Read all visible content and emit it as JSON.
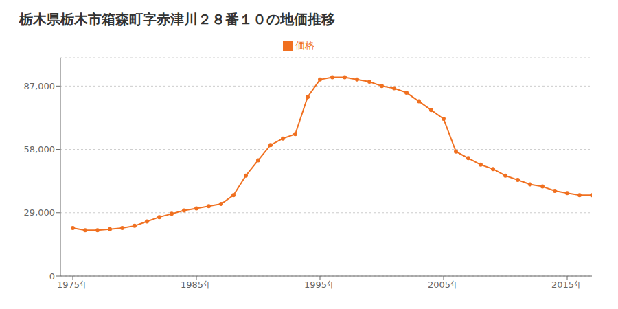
{
  "chart_data": {
    "type": "line",
    "title": "栃木県栃木市箱森町字赤津川２８番１０の地価推移",
    "x": [
      1975,
      1976,
      1977,
      1978,
      1979,
      1980,
      1981,
      1982,
      1983,
      1984,
      1985,
      1986,
      1987,
      1988,
      1989,
      1990,
      1991,
      1992,
      1993,
      1994,
      1995,
      1996,
      1997,
      1998,
      1999,
      2000,
      2001,
      2002,
      2003,
      2004,
      2005,
      2006,
      2007,
      2008,
      2009,
      2010,
      2011,
      2012,
      2013,
      2014,
      2015,
      2016,
      2017
    ],
    "series": [
      {
        "name": "価格",
        "color": "#f07020",
        "marker": "circle",
        "values": [
          22000,
          21000,
          21000,
          21500,
          22000,
          23000,
          25000,
          27000,
          28500,
          30000,
          31000,
          32000,
          33000,
          37000,
          46000,
          53000,
          60000,
          63000,
          65000,
          82000,
          90000,
          91000,
          91000,
          90000,
          89000,
          87000,
          86000,
          84000,
          80000,
          76000,
          72000,
          57000,
          54000,
          51000,
          49000,
          46000,
          44000,
          42000,
          41000,
          39000,
          38000,
          37000,
          37000
        ]
      }
    ],
    "xlim": [
      1974,
      2017
    ],
    "xticks": [
      {
        "value": 1975,
        "label": "1975年"
      },
      {
        "value": 1985,
        "label": "1985年"
      },
      {
        "value": 1995,
        "label": "1995年"
      },
      {
        "value": 2005,
        "label": "2005年"
      },
      {
        "value": 2015,
        "label": "2015年"
      }
    ],
    "ylim": [
      0,
      100000
    ],
    "yticks": [
      0,
      {
        "value": 29000,
        "label": "29,000"
      },
      {
        "value": 58000,
        "label": "58,000"
      },
      {
        "value": 87000,
        "label": "87,000"
      }
    ],
    "grid": "y",
    "legend": "top"
  }
}
